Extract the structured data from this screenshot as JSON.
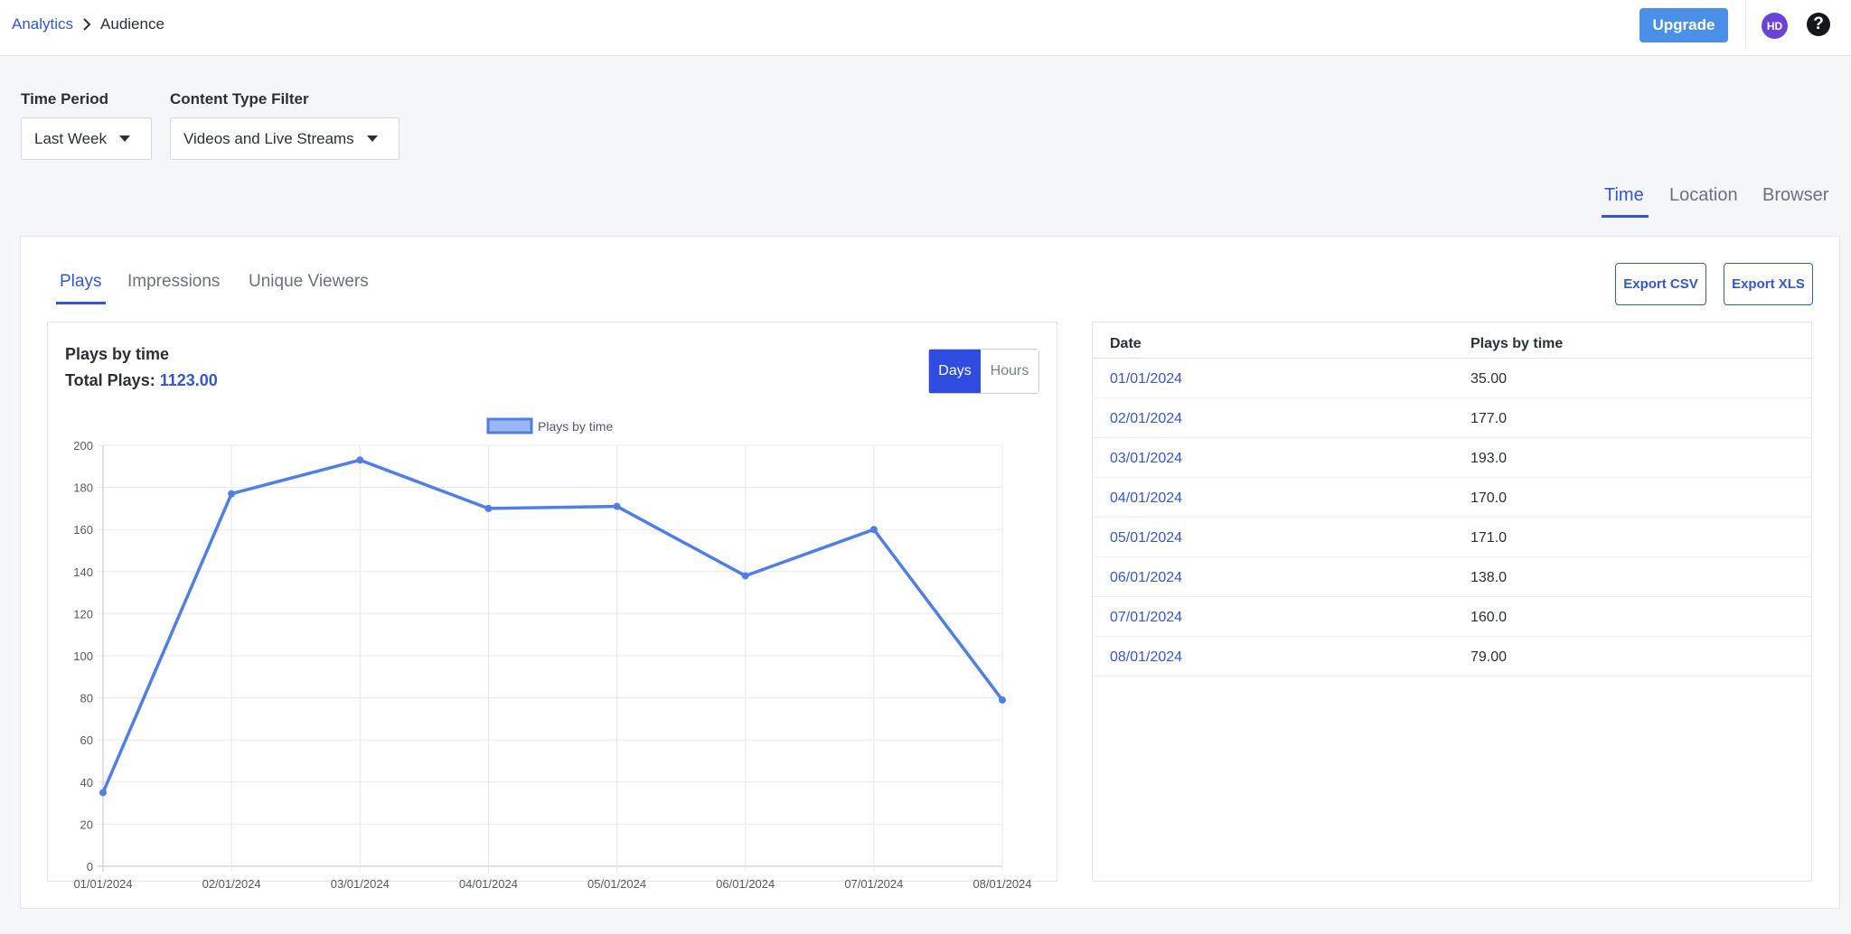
{
  "breadcrumb": {
    "parent": "Analytics",
    "current": "Audience"
  },
  "header": {
    "upgrade_label": "Upgrade",
    "avatar_initials": "HD",
    "help_glyph": "?"
  },
  "filters": {
    "time_period": {
      "label": "Time Period",
      "value": "Last Week"
    },
    "content_type": {
      "label": "Content Type Filter",
      "value": "Videos and Live Streams"
    }
  },
  "view_tabs": [
    "Time",
    "Location",
    "Browser"
  ],
  "metric_tabs": [
    "Plays",
    "Impressions",
    "Unique Viewers"
  ],
  "export": {
    "csv_label": "Export CSV",
    "xls_label": "Export XLS"
  },
  "chart_panel": {
    "title": "Plays by time",
    "total_label": "Total Plays:",
    "total_value": "1123.00",
    "toggle": {
      "days": "Days",
      "hours": "Hours"
    }
  },
  "table": {
    "headers": {
      "date": "Date",
      "plays": "Plays by time"
    },
    "rows": [
      {
        "date": "01/01/2024",
        "plays": "35.00"
      },
      {
        "date": "02/01/2024",
        "plays": "177.0"
      },
      {
        "date": "03/01/2024",
        "plays": "193.0"
      },
      {
        "date": "04/01/2024",
        "plays": "170.0"
      },
      {
        "date": "05/01/2024",
        "plays": "171.0"
      },
      {
        "date": "06/01/2024",
        "plays": "138.0"
      },
      {
        "date": "07/01/2024",
        "plays": "160.0"
      },
      {
        "date": "08/01/2024",
        "plays": "79.00"
      }
    ]
  },
  "colors": {
    "accent": "#3356d6",
    "line": "#4f7fe6",
    "upgrade": "#4a8fe8",
    "avatar": "#6a44d6"
  },
  "chart_data": {
    "type": "line",
    "series": [
      {
        "name": "Plays by time",
        "values": [
          35,
          177,
          193,
          170,
          171,
          138,
          160,
          79
        ]
      }
    ],
    "categories": [
      "01/01/2024",
      "02/01/2024",
      "03/01/2024",
      "04/01/2024",
      "05/01/2024",
      "06/01/2024",
      "07/01/2024",
      "08/01/2024"
    ],
    "yticks": [
      0,
      20,
      40,
      60,
      80,
      100,
      120,
      140,
      160,
      180,
      200
    ],
    "ylim": [
      0,
      200
    ],
    "grid": true,
    "legend": "top-center"
  }
}
